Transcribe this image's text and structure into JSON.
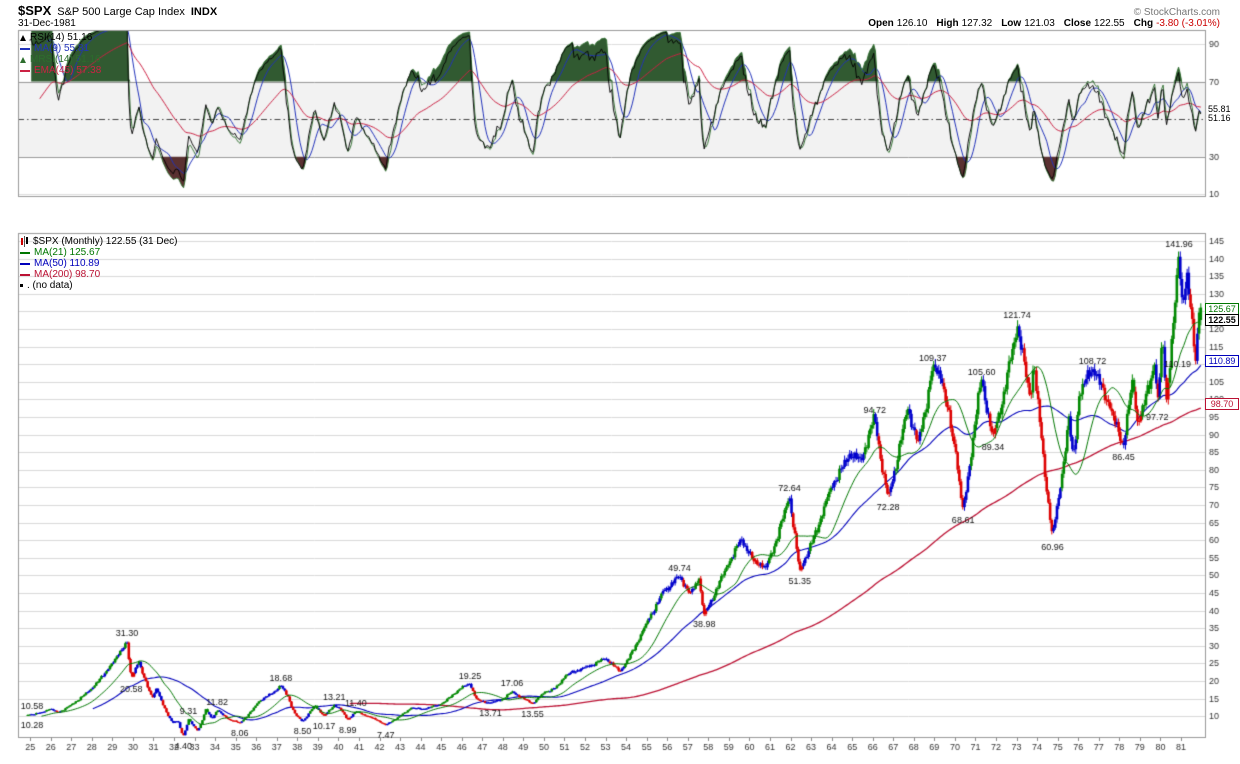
{
  "header": {
    "symbol": "$SPX",
    "name": "S&P 500 Large Cap Index",
    "exchange": "INDX",
    "copyright": "© StockCharts.com",
    "date": "31-Dec-1981",
    "quote_items": [
      {
        "label": "Open",
        "value": "126.10"
      },
      {
        "label": "High",
        "value": "127.32"
      },
      {
        "label": "Low",
        "value": "121.03"
      },
      {
        "label": "Close",
        "value": "122.55"
      },
      {
        "label": "Chg",
        "value": "-3.80 (-3.01%)",
        "negative": true
      }
    ]
  },
  "rsi_panel": {
    "legend": [
      {
        "label": "RSI(14) 51.16",
        "color": "#000000",
        "icon": "tri"
      },
      {
        "label": "MA(9) 55.81",
        "color": "#2233bb",
        "icon": "line"
      },
      {
        "label": "MRSI(14) 51.16",
        "color": "#2d6e2d",
        "icon": "tri"
      },
      {
        "label": "EMA(45) 57.38",
        "color": "#cc2244",
        "icon": "line"
      }
    ],
    "yticks": [
      90,
      70,
      30,
      10
    ],
    "band": [
      30,
      70
    ],
    "midline": 50,
    "last_labels": [
      {
        "text": "55.81",
        "value": 55.81,
        "color": "#000000"
      },
      {
        "text": "51.16",
        "value": 51.16,
        "color": "#000000"
      }
    ]
  },
  "price_panel": {
    "legend": [
      {
        "label": "$SPX (Monthly) 122.55 (31 Dec)",
        "color": "#000000",
        "icon": "candle"
      },
      {
        "label": "MA(21) 125.67",
        "color": "#007700",
        "icon": "line"
      },
      {
        "label": "MA(50) 110.89",
        "color": "#0000bb",
        "icon": "line"
      },
      {
        "label": "MA(200) 98.70",
        "color": "#bb1133",
        "icon": "line"
      },
      {
        "label": ". (no data)",
        "color": "#000000",
        "icon": "dot"
      }
    ],
    "last_labels": [
      {
        "text": "125.67",
        "value": 125.67,
        "color": "#007700"
      },
      {
        "text": "122.55",
        "value": 122.55,
        "color": "#000000",
        "bold": true
      },
      {
        "text": "110.89",
        "value": 110.89,
        "color": "#0000bb"
      },
      {
        "text": "98.70",
        "value": 98.7,
        "color": "#bb1133"
      }
    ]
  },
  "chart_data": [
    {
      "type": "line",
      "panel": "rsi",
      "title": "RSI(14) 51.16",
      "series": [
        "RSI(14)",
        "MA(9)",
        "MRSI(14)",
        "EMA(45)"
      ],
      "params": {
        "rsi_period": 14,
        "ma_period": 9,
        "ema_period": 45
      },
      "last_values": {
        "rsi": 51.16,
        "ma9": 55.81,
        "mrsi": 51.16,
        "ema45": 57.38
      },
      "ylim": [
        0,
        100
      ],
      "yticks": [
        90,
        70,
        30,
        10
      ],
      "overbought": 70,
      "oversold": 30,
      "fill_colors": {
        "above": "#315a31",
        "below": "#5a3131"
      },
      "derived_from": "monthly closes of price panel"
    },
    {
      "type": "candlestick",
      "panel": "price",
      "title": "$SPX (Monthly) 122.55 (31 Dec)",
      "timeframe": "monthly",
      "x_range_years": [
        1925,
        1981
      ],
      "xticks": [
        25,
        26,
        27,
        28,
        29,
        30,
        31,
        32,
        33,
        34,
        35,
        36,
        37,
        38,
        39,
        40,
        41,
        42,
        43,
        44,
        45,
        46,
        47,
        48,
        49,
        50,
        51,
        52,
        53,
        54,
        55,
        56,
        57,
        58,
        59,
        60,
        61,
        62,
        63,
        64,
        65,
        66,
        67,
        68,
        69,
        70,
        71,
        72,
        73,
        74,
        75,
        76,
        77,
        78,
        79,
        80,
        81
      ],
      "ylim": [
        5,
        147
      ],
      "yticks": [
        10,
        15,
        20,
        25,
        30,
        35,
        40,
        45,
        50,
        55,
        60,
        65,
        70,
        75,
        80,
        85,
        90,
        95,
        100,
        105,
        110,
        115,
        120,
        125,
        130,
        135,
        140,
        145
      ],
      "bar_colors": {
        "up": "#008800",
        "down": "#dd0000",
        "mixed": "#0000cc"
      },
      "overlays": [
        {
          "name": "MA(21)",
          "last": 125.67,
          "color": "#007700"
        },
        {
          "name": "MA(50)",
          "last": 110.89,
          "color": "#0000bb"
        },
        {
          "name": "MA(200)",
          "last": 98.7,
          "color": "#bb1133"
        }
      ],
      "last_bar": {
        "open": 126.1,
        "high": 127.32,
        "low": 121.03,
        "close": 122.55
      },
      "monthly_close_anchors": [
        [
          1923.8,
          8.8
        ],
        [
          1924.3,
          9.3
        ],
        [
          1924.7,
          10.0
        ],
        [
          1924.95,
          10.45
        ],
        [
          1925.6,
          11.1
        ],
        [
          1925.95,
          12.1
        ],
        [
          1926.35,
          11.0
        ],
        [
          1926.95,
          13.1
        ],
        [
          1927.9,
          17.3
        ],
        [
          1928.9,
          24.4
        ],
        [
          1929.15,
          26.3
        ],
        [
          1929.71,
          31.3
        ],
        [
          1929.92,
          20.58
        ],
        [
          1930.28,
          25.9
        ],
        [
          1930.95,
          15.3
        ],
        [
          1931.15,
          18.0
        ],
        [
          1931.95,
          8.1
        ],
        [
          1932.2,
          8.7
        ],
        [
          1932.45,
          4.4
        ],
        [
          1932.7,
          9.31
        ],
        [
          1933.15,
          5.9
        ],
        [
          1933.55,
          12.0
        ],
        [
          1933.85,
          9.3
        ],
        [
          1934.1,
          11.82
        ],
        [
          1934.7,
          9.0
        ],
        [
          1935.2,
          8.06
        ],
        [
          1936.1,
          14.1
        ],
        [
          1936.95,
          17.2
        ],
        [
          1937.2,
          18.68
        ],
        [
          1937.55,
          15.6
        ],
        [
          1937.9,
          10.6
        ],
        [
          1938.25,
          8.5
        ],
        [
          1938.85,
          13.2
        ],
        [
          1939.3,
          10.17
        ],
        [
          1939.8,
          13.21
        ],
        [
          1940.1,
          12.1
        ],
        [
          1940.45,
          8.99
        ],
        [
          1940.85,
          11.4
        ],
        [
          1941.5,
          9.9
        ],
        [
          1941.95,
          8.7
        ],
        [
          1942.3,
          7.47
        ],
        [
          1942.95,
          9.9
        ],
        [
          1943.55,
          12.4
        ],
        [
          1944.05,
          11.9
        ],
        [
          1944.95,
          13.3
        ],
        [
          1945.9,
          17.7
        ],
        [
          1946.4,
          19.25
        ],
        [
          1946.75,
          14.7
        ],
        [
          1947.4,
          13.71
        ],
        [
          1948.0,
          14.8
        ],
        [
          1948.45,
          17.06
        ],
        [
          1949.45,
          13.55
        ],
        [
          1950.05,
          16.9
        ],
        [
          1950.55,
          18.0
        ],
        [
          1951.05,
          21.5
        ],
        [
          1951.95,
          23.8
        ],
        [
          1953.0,
          26.4
        ],
        [
          1953.7,
          22.7
        ],
        [
          1954.95,
          36.0
        ],
        [
          1955.8,
          45.6
        ],
        [
          1956.6,
          49.74
        ],
        [
          1957.1,
          44.7
        ],
        [
          1957.55,
          49.1
        ],
        [
          1957.8,
          38.98
        ],
        [
          1958.9,
          52.5
        ],
        [
          1959.6,
          60.7
        ],
        [
          1960.2,
          54.0
        ],
        [
          1960.8,
          52.3
        ],
        [
          1961.95,
          72.64
        ],
        [
          1962.45,
          51.35
        ],
        [
          1963.9,
          74.0
        ],
        [
          1964.9,
          84.8
        ],
        [
          1965.45,
          82.5
        ],
        [
          1965.95,
          92.4
        ],
        [
          1966.1,
          94.72
        ],
        [
          1966.75,
          72.28
        ],
        [
          1967.7,
          97.6
        ],
        [
          1968.2,
          87.7
        ],
        [
          1968.92,
          109.37
        ],
        [
          1969.35,
          105.9
        ],
        [
          1970.05,
          85.0
        ],
        [
          1970.4,
          68.61
        ],
        [
          1970.95,
          92.2
        ],
        [
          1971.3,
          105.6
        ],
        [
          1971.85,
          89.34
        ],
        [
          1972.95,
          118.0
        ],
        [
          1973.02,
          121.74
        ],
        [
          1973.65,
          101.0
        ],
        [
          1973.85,
          111.0
        ],
        [
          1974.2,
          90.0
        ],
        [
          1974.75,
          60.96
        ],
        [
          1975.05,
          72.0
        ],
        [
          1975.55,
          95.2
        ],
        [
          1975.75,
          83.5
        ],
        [
          1976.05,
          100.9
        ],
        [
          1976.7,
          108.72
        ],
        [
          1977.5,
          99.0
        ],
        [
          1978.2,
          86.45
        ],
        [
          1978.65,
          106.0
        ],
        [
          1978.9,
          93.0
        ],
        [
          1979.75,
          111.0
        ],
        [
          1979.85,
          97.72
        ],
        [
          1980.1,
          117.0
        ],
        [
          1980.3,
          100.0
        ],
        [
          1980.9,
          141.96
        ],
        [
          1981.05,
          129.0
        ],
        [
          1981.3,
          136.0
        ],
        [
          1981.73,
          110.19
        ],
        [
          1981.87,
          126.3
        ],
        [
          1981.96,
          122.55
        ]
      ],
      "annotations": [
        {
          "text": "10.58",
          "year": 1924.78,
          "value": 10.58,
          "pos": "above"
        },
        {
          "text": "10.28",
          "year": 1924.82,
          "value": 10.28,
          "pos": "below"
        },
        {
          "text": "31.30",
          "year": 1929.71,
          "value": 31.3,
          "pos": "above"
        },
        {
          "text": "20.58",
          "year": 1929.92,
          "value": 20.58,
          "pos": "below"
        },
        {
          "text": "4.40",
          "year": 1932.45,
          "value": 4.4,
          "pos": "below"
        },
        {
          "text": "9.31",
          "year": 1932.7,
          "value": 9.31,
          "pos": "above"
        },
        {
          "text": "11.82",
          "year": 1934.1,
          "value": 11.82,
          "pos": "above"
        },
        {
          "text": "8.06",
          "year": 1935.2,
          "value": 8.06,
          "pos": "below"
        },
        {
          "text": "18.68",
          "year": 1937.2,
          "value": 18.68,
          "pos": "above"
        },
        {
          "text": "8.50",
          "year": 1938.25,
          "value": 8.5,
          "pos": "below"
        },
        {
          "text": "10.17",
          "year": 1939.3,
          "value": 10.17,
          "pos": "below"
        },
        {
          "text": "13.21",
          "year": 1939.8,
          "value": 13.21,
          "pos": "above"
        },
        {
          "text": "8.99",
          "year": 1940.45,
          "value": 8.99,
          "pos": "below"
        },
        {
          "text": "11.40",
          "year": 1940.85,
          "value": 11.4,
          "pos": "above"
        },
        {
          "text": "7.47",
          "year": 1942.3,
          "value": 7.47,
          "pos": "below"
        },
        {
          "text": "19.25",
          "year": 1946.4,
          "value": 19.25,
          "pos": "above"
        },
        {
          "text": "13.71",
          "year": 1947.4,
          "value": 13.71,
          "pos": "below"
        },
        {
          "text": "17.06",
          "year": 1948.45,
          "value": 17.06,
          "pos": "above"
        },
        {
          "text": "13.55",
          "year": 1949.45,
          "value": 13.55,
          "pos": "below"
        },
        {
          "text": "49.74",
          "year": 1956.6,
          "value": 49.74,
          "pos": "above"
        },
        {
          "text": "38.98",
          "year": 1957.8,
          "value": 38.98,
          "pos": "below"
        },
        {
          "text": "72.64",
          "year": 1961.95,
          "value": 72.64,
          "pos": "above"
        },
        {
          "text": "51.35",
          "year": 1962.45,
          "value": 51.35,
          "pos": "below"
        },
        {
          "text": "94.72",
          "year": 1966.1,
          "value": 94.72,
          "pos": "above"
        },
        {
          "text": "72.28",
          "year": 1966.75,
          "value": 72.28,
          "pos": "below"
        },
        {
          "text": "109.37",
          "year": 1968.92,
          "value": 109.37,
          "pos": "above"
        },
        {
          "text": "68.61",
          "year": 1970.4,
          "value": 68.61,
          "pos": "below"
        },
        {
          "text": "105.60",
          "year": 1971.3,
          "value": 105.6,
          "pos": "above"
        },
        {
          "text": "89.34",
          "year": 1971.85,
          "value": 89.34,
          "pos": "below"
        },
        {
          "text": "121.74",
          "year": 1973.02,
          "value": 121.74,
          "pos": "above"
        },
        {
          "text": "60.96",
          "year": 1974.75,
          "value": 60.96,
          "pos": "below"
        },
        {
          "text": "108.72",
          "year": 1976.7,
          "value": 108.72,
          "pos": "above"
        },
        {
          "text": "86.45",
          "year": 1978.2,
          "value": 86.45,
          "pos": "below"
        },
        {
          "text": "97.72",
          "year": 1979.85,
          "value": 97.72,
          "pos": "below"
        },
        {
          "text": "141.96",
          "year": 1980.9,
          "value": 141.96,
          "pos": "above"
        },
        {
          "text": "110.19",
          "year": 1981.73,
          "value": 110.19,
          "pos": "left"
        }
      ]
    }
  ]
}
